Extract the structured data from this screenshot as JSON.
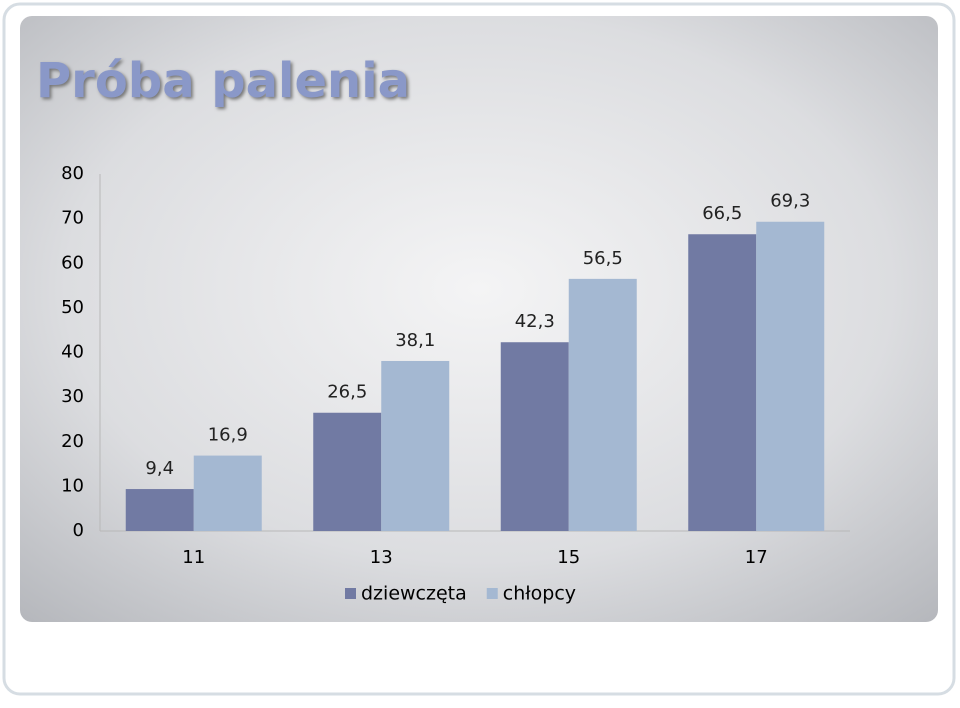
{
  "chart_data": {
    "type": "bar",
    "title": "Próba palenia",
    "categories": [
      "11",
      "13",
      "15",
      "17"
    ],
    "series": [
      {
        "name": "dziewczęta",
        "color": "#717aa3",
        "values": [
          9.4,
          26.5,
          42.3,
          66.5
        ],
        "value_labels": [
          "9,4",
          "26,5",
          "42,3",
          "66,5"
        ]
      },
      {
        "name": "chłopcy",
        "color": "#a4b8d2",
        "values": [
          16.9,
          38.1,
          56.5,
          69.3
        ],
        "value_labels": [
          "16,9",
          "38,1",
          "56,5",
          "69,3"
        ]
      }
    ],
    "ylim": [
      0,
      80
    ],
    "yticks": [
      0,
      10,
      20,
      30,
      40,
      50,
      60,
      70,
      80
    ],
    "grid": false,
    "legend": "bottom"
  }
}
